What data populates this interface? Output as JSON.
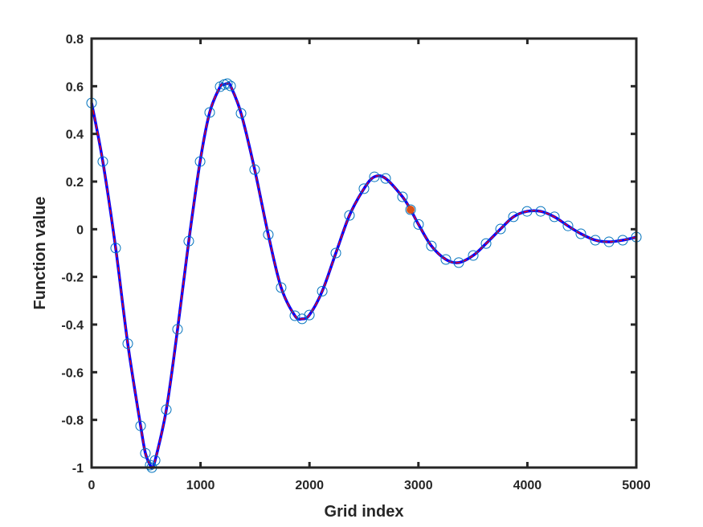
{
  "chart_data": {
    "type": "line",
    "title": "",
    "xlabel": "Grid index",
    "ylabel": "Function value",
    "xlim": [
      0,
      5000
    ],
    "ylim": [
      -1,
      0.8
    ],
    "xticks": [
      0,
      1000,
      2000,
      3000,
      4000,
      5000
    ],
    "xtick_labels": [
      "0",
      "1000",
      "2000",
      "3000",
      "4000",
      "5000"
    ],
    "yticks": [
      -1,
      -0.8,
      -0.6,
      -0.4,
      -0.2,
      0,
      0.2,
      0.4,
      0.6,
      0.8
    ],
    "ytick_labels": [
      "-1",
      "-0.8",
      "-0.6",
      "-0.4",
      "-0.2",
      "0",
      "0.2",
      "0.4",
      "0.6",
      "0.8"
    ],
    "grid": false,
    "colors": {
      "line": "#0000ff",
      "dashed_overlay": "#ff0000",
      "markers": "#0072bd",
      "highlight": "#d95319",
      "axes": "#262626"
    },
    "series": [
      {
        "style": "solid blue line with red dashed overlay and open circle markers",
        "x": [
          0,
          103,
          221,
          332,
          450,
          494,
          538,
          553,
          583,
          686,
          789,
          892,
          996,
          1084,
          1180,
          1217,
          1246,
          1276,
          1372,
          1497,
          1622,
          1740,
          1866,
          1932,
          1999,
          2117,
          2242,
          2367,
          2500,
          2596,
          2699,
          2854,
          2928,
          3001,
          3119,
          3252,
          3370,
          3503,
          3621,
          3754,
          3872,
          3997,
          4122,
          4248,
          4373,
          4491,
          4624,
          4749,
          4875,
          5000
        ],
        "y": [
          0.53,
          0.284,
          -0.079,
          -0.48,
          -0.825,
          -0.94,
          -0.99,
          -1.0,
          -0.97,
          -0.757,
          -0.42,
          -0.05,
          0.284,
          0.49,
          0.598,
          0.607,
          0.611,
          0.601,
          0.486,
          0.25,
          -0.023,
          -0.245,
          -0.363,
          -0.376,
          -0.36,
          -0.26,
          -0.1,
          0.058,
          0.17,
          0.22,
          0.213,
          0.136,
          0.082,
          0.02,
          -0.07,
          -0.127,
          -0.14,
          -0.11,
          -0.06,
          0.001,
          0.052,
          0.075,
          0.075,
          0.052,
          0.014,
          -0.019,
          -0.046,
          -0.053,
          -0.046,
          -0.033
        ]
      }
    ],
    "highlight_point": {
      "x": 2928,
      "y": 0.082
    }
  }
}
